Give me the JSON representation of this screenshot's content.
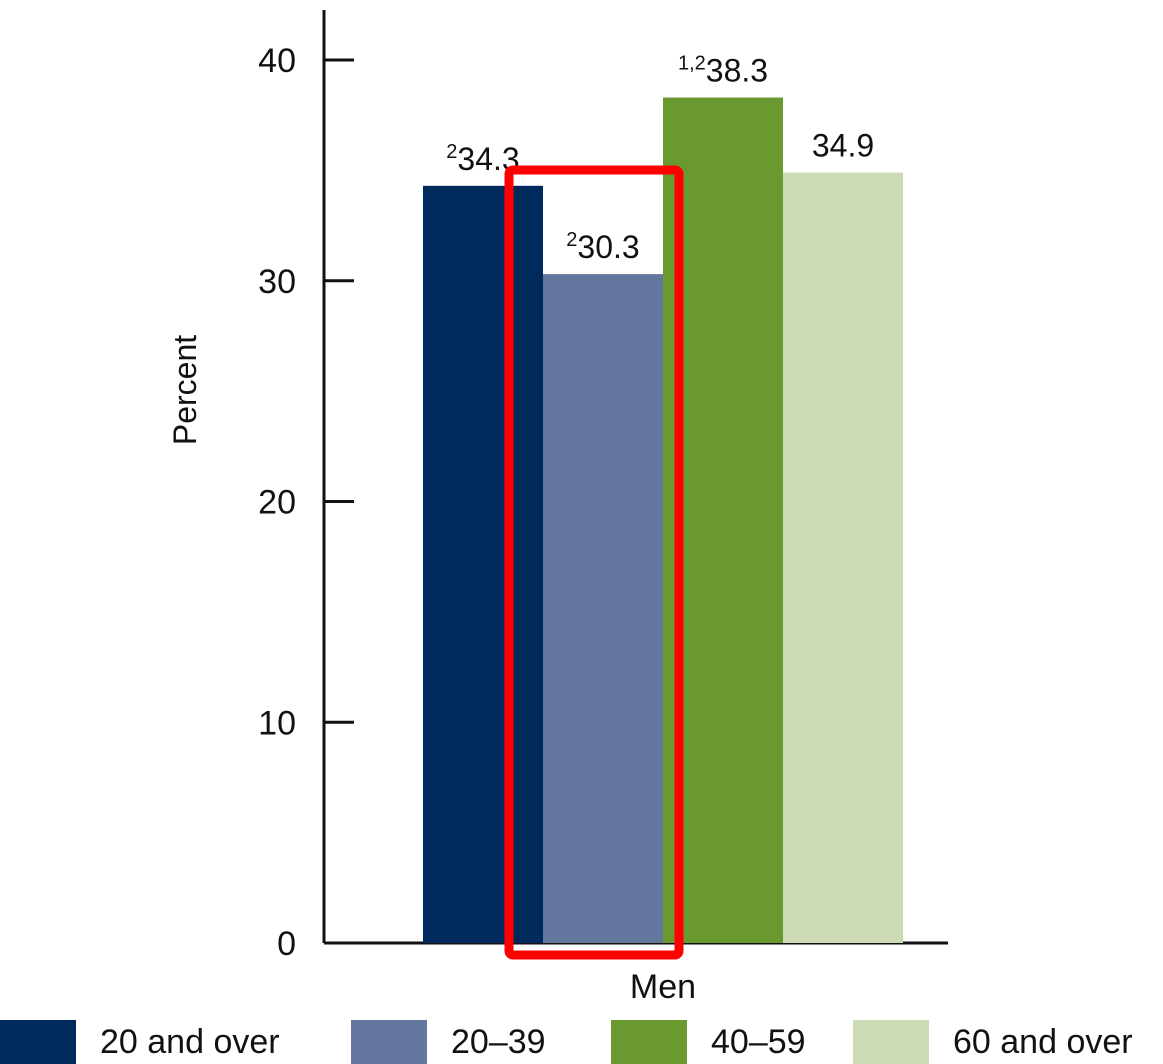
{
  "chart_data": {
    "type": "bar",
    "categories": [
      "Men"
    ],
    "series": [
      {
        "name": "20 and over",
        "values": [
          34.3
        ],
        "label": "34.3",
        "label_sup": "2",
        "color": "#002a5c"
      },
      {
        "name": "20–39",
        "values": [
          30.3
        ],
        "label": "30.3",
        "label_sup": "2",
        "color": "#63779e"
      },
      {
        "name": "40–59",
        "values": [
          38.3
        ],
        "label": "38.3",
        "label_sup": "1,2",
        "color": "#6a9a2f"
      },
      {
        "name": "60 and over",
        "values": [
          34.9
        ],
        "label": "34.9",
        "label_sup": "",
        "color": "#cddbb5"
      }
    ],
    "ylabel": "Percent",
    "xlabel": "",
    "ylim": [
      0,
      40
    ],
    "yticks": [
      0,
      10,
      20,
      30,
      40
    ],
    "grid": false,
    "legend_position": "bottom",
    "highlight": {
      "series_index": 1,
      "color": "#ff0000"
    }
  }
}
